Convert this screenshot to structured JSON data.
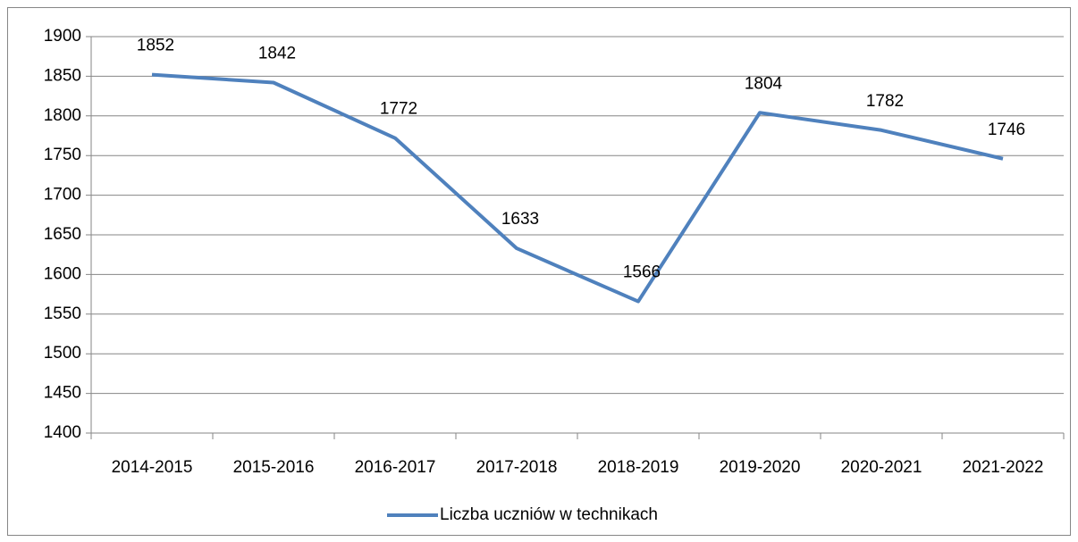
{
  "chart_data": {
    "type": "line",
    "categories": [
      "2014-2015",
      "2015-2016",
      "2016-2017",
      "2017-2018",
      "2018-2019",
      "2019-2020",
      "2020-2021",
      "2021-2022"
    ],
    "series": [
      {
        "name": "Liczba uczniów w technikach",
        "color": "#4f81bd",
        "values": [
          1852,
          1842,
          1772,
          1633,
          1566,
          1804,
          1782,
          1746
        ]
      }
    ],
    "ylim": [
      1400,
      1900
    ],
    "yticks": [
      1400,
      1450,
      1500,
      1550,
      1600,
      1650,
      1700,
      1750,
      1800,
      1850,
      1900
    ],
    "grid": true,
    "legend": "bottom"
  }
}
